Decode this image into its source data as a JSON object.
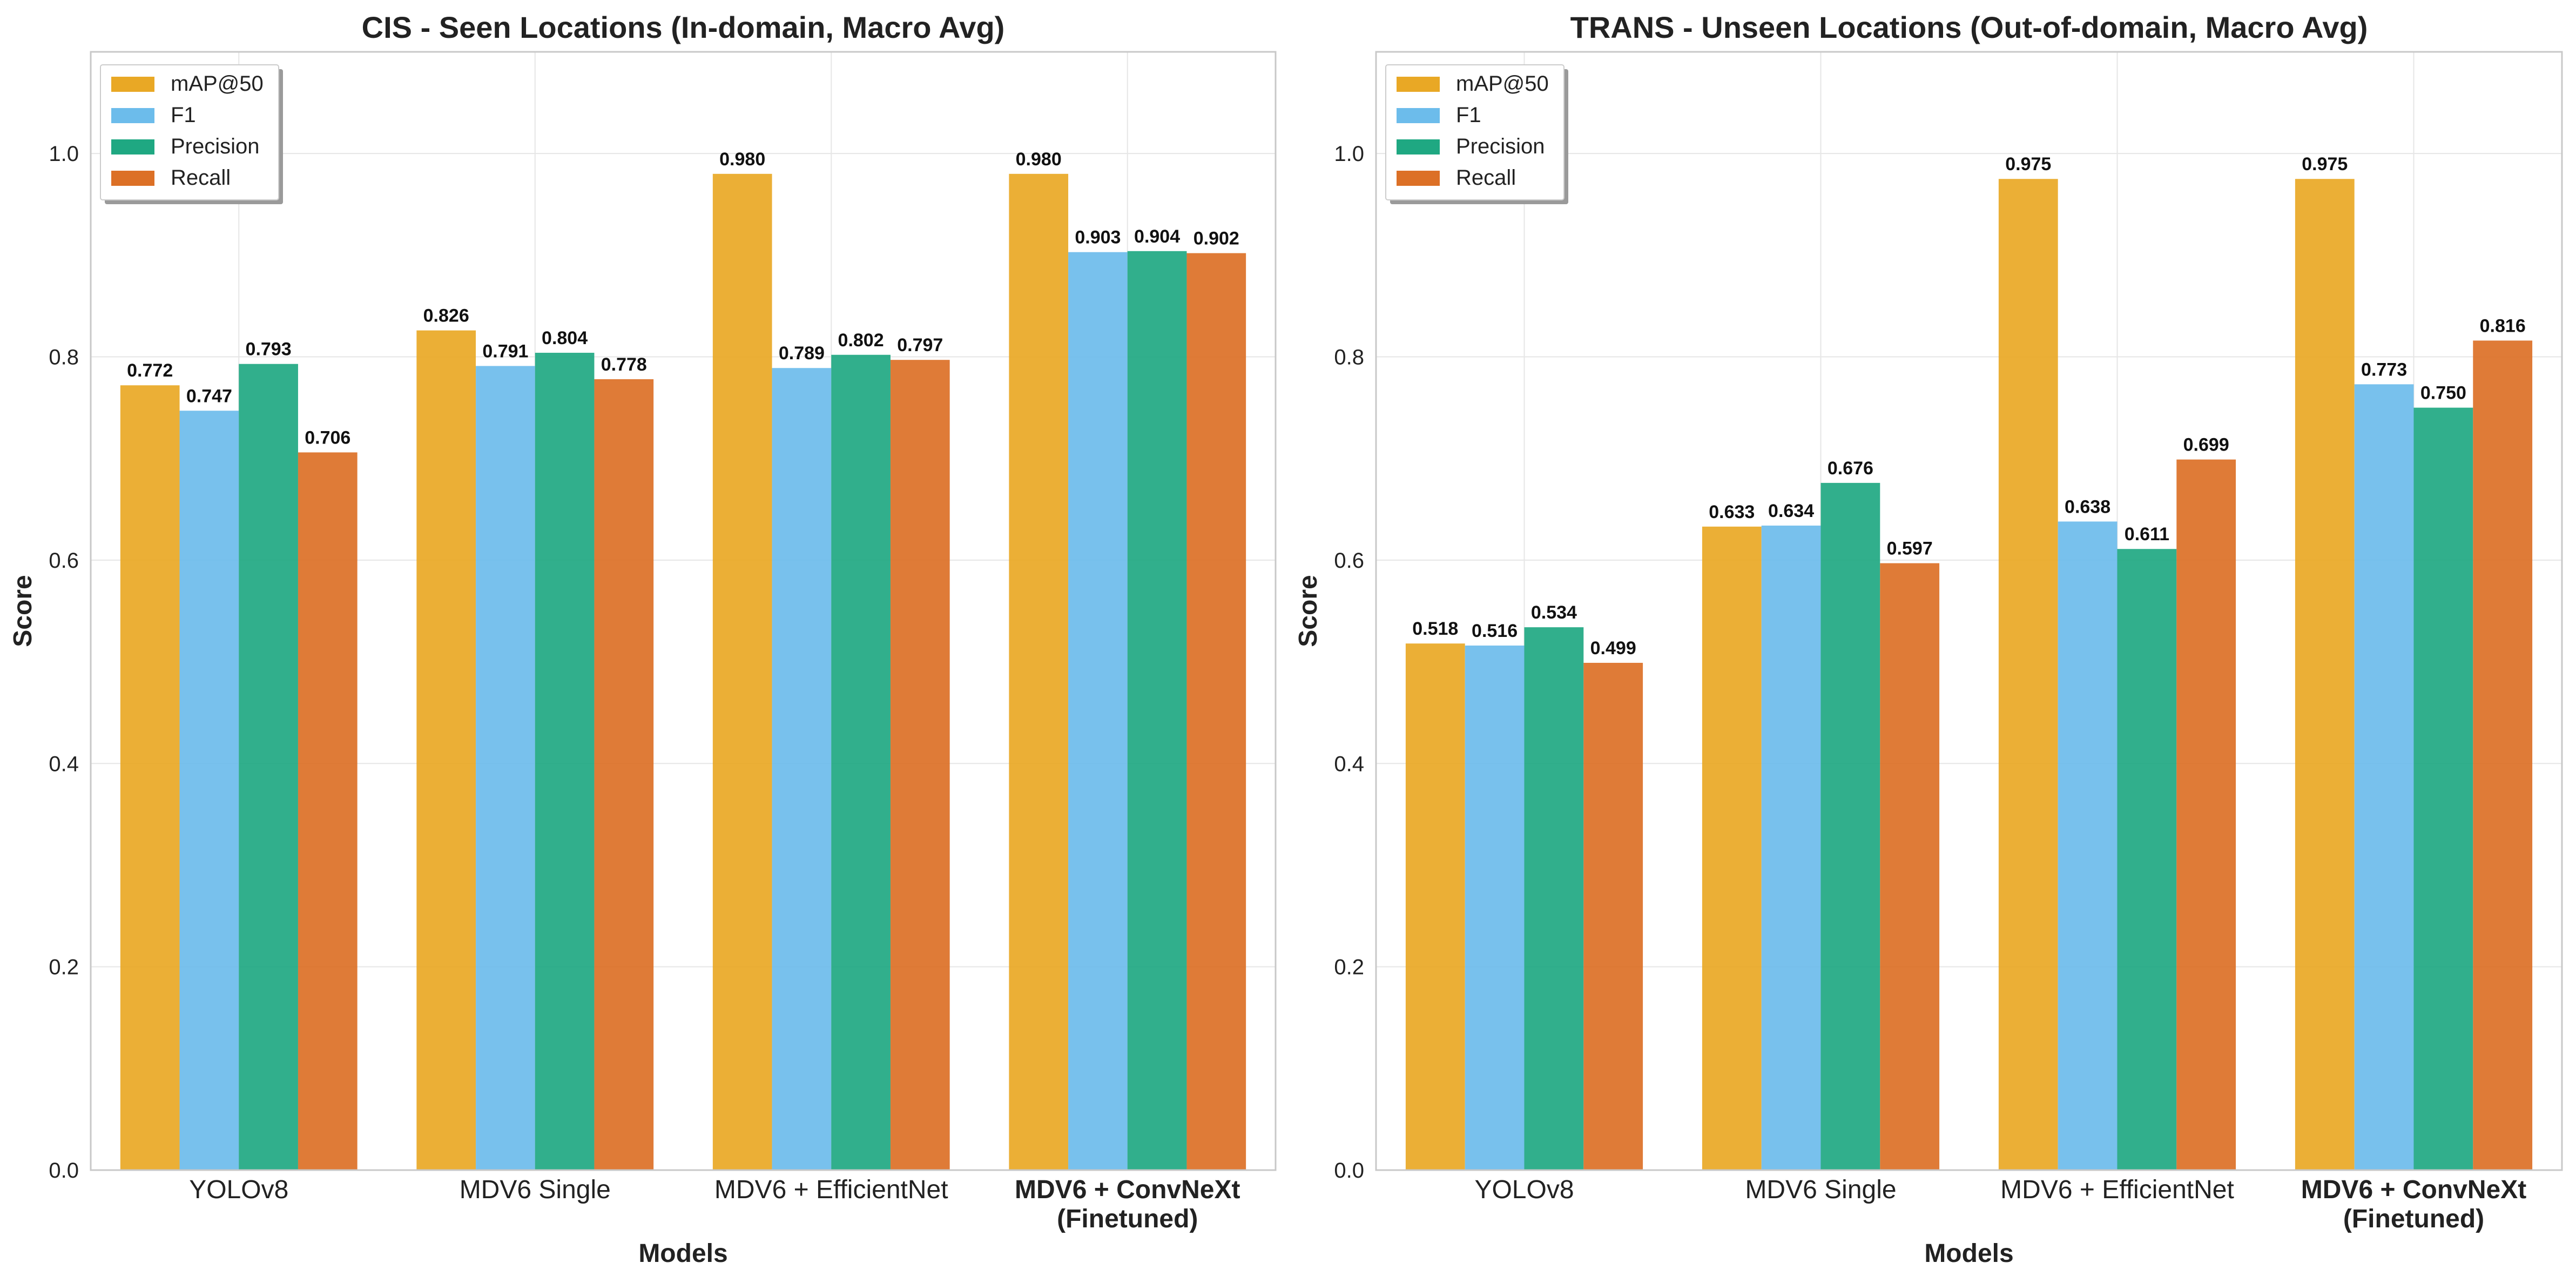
{
  "colors": {
    "mAP@50": "#E9A825",
    "F1": "#6CBCEB",
    "Precision": "#1FA882",
    "Recall": "#DC7026"
  },
  "chart_data": [
    {
      "type": "bar",
      "title": "CIS - Seen Locations (In-domain, Macro Avg)",
      "xlabel": "Models",
      "ylabel": "Score",
      "ylim": [
        0,
        1.1
      ],
      "yticks": [
        "0.0",
        "0.2",
        "0.4",
        "0.6",
        "0.8",
        "1.0"
      ],
      "grid": true,
      "legend": "top-left",
      "categories": [
        {
          "lines": [
            "YOLOv8"
          ],
          "bold": false
        },
        {
          "lines": [
            "MDV6 Single"
          ],
          "bold": false
        },
        {
          "lines": [
            "MDV6 + EfficientNet"
          ],
          "bold": false
        },
        {
          "lines": [
            "MDV6 + ConvNeXt",
            "(Finetuned)"
          ],
          "bold": true
        }
      ],
      "series": [
        {
          "name": "mAP@50",
          "values": [
            0.772,
            0.826,
            0.98,
            0.98
          ],
          "labels": [
            "0.772",
            "0.826",
            "0.980",
            "0.980"
          ]
        },
        {
          "name": "F1",
          "values": [
            0.747,
            0.791,
            0.789,
            0.903
          ],
          "labels": [
            "0.747",
            "0.791",
            "0.789",
            "0.903"
          ]
        },
        {
          "name": "Precision",
          "values": [
            0.793,
            0.804,
            0.802,
            0.904
          ],
          "labels": [
            "0.793",
            "0.804",
            "0.802",
            "0.904"
          ]
        },
        {
          "name": "Recall",
          "values": [
            0.706,
            0.778,
            0.797,
            0.902
          ],
          "labels": [
            "0.706",
            "0.778",
            "0.797",
            "0.902"
          ]
        }
      ]
    },
    {
      "type": "bar",
      "title": "TRANS - Unseen Locations (Out-of-domain, Macro Avg)",
      "xlabel": "Models",
      "ylabel": "Score",
      "ylim": [
        0,
        1.1
      ],
      "yticks": [
        "0.0",
        "0.2",
        "0.4",
        "0.6",
        "0.8",
        "1.0"
      ],
      "grid": true,
      "legend": "top-left",
      "categories": [
        {
          "lines": [
            "YOLOv8"
          ],
          "bold": false
        },
        {
          "lines": [
            "MDV6 Single"
          ],
          "bold": false
        },
        {
          "lines": [
            "MDV6 + EfficientNet"
          ],
          "bold": false
        },
        {
          "lines": [
            "MDV6 + ConvNeXt",
            "(Finetuned)"
          ],
          "bold": true
        }
      ],
      "series": [
        {
          "name": "mAP@50",
          "values": [
            0.518,
            0.633,
            0.975,
            0.975
          ],
          "labels": [
            "0.518",
            "0.633",
            "0.975",
            "0.975"
          ]
        },
        {
          "name": "F1",
          "values": [
            0.516,
            0.634,
            0.638,
            0.773
          ],
          "labels": [
            "0.516",
            "0.634",
            "0.638",
            "0.773"
          ]
        },
        {
          "name": "Precision",
          "values": [
            0.534,
            0.676,
            0.611,
            0.75
          ],
          "labels": [
            "0.534",
            "0.676",
            "0.611",
            "0.750"
          ]
        },
        {
          "name": "Recall",
          "values": [
            0.499,
            0.597,
            0.699,
            0.816
          ],
          "labels": [
            "0.499",
            "0.597",
            "0.699",
            "0.816"
          ]
        }
      ]
    }
  ]
}
